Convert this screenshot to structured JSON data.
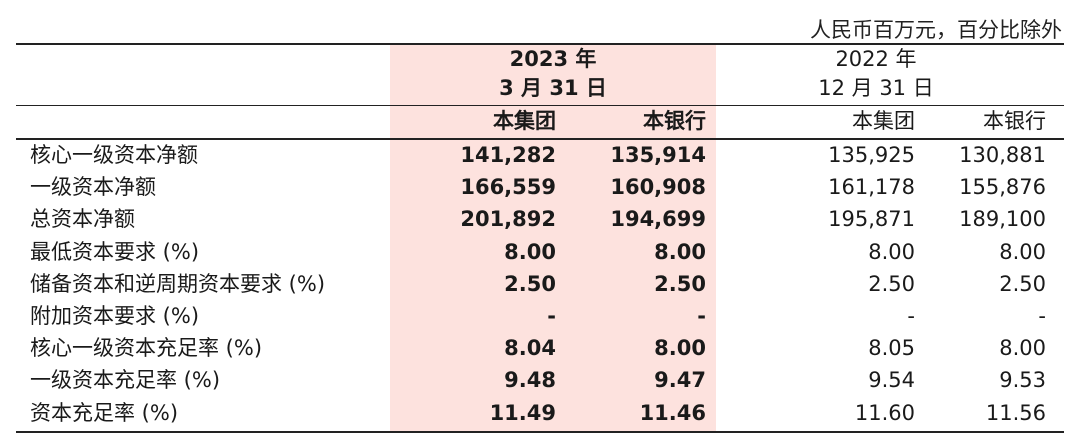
{
  "unit_note": "人民币百万元，百分比除外",
  "header": {
    "period_2023_line1": "2023 年",
    "period_2023_line2": "3 月 31 日",
    "period_2022_line1": "2022 年",
    "period_2022_line2": "12 月 31 日",
    "col_group": "本集团",
    "col_bank": "本银行",
    "col_group_2022": "本集团",
    "col_bank_2022": "本银行"
  },
  "rows": [
    {
      "label": "核心一级资本净额",
      "v1": "141,282",
      "v2": "135,914",
      "v3": "135,925",
      "v4": "130,881"
    },
    {
      "label": "一级资本净额",
      "v1": "166,559",
      "v2": "160,908",
      "v3": "161,178",
      "v4": "155,876"
    },
    {
      "label": "总资本净额",
      "v1": "201,892",
      "v2": "194,699",
      "v3": "195,871",
      "v4": "189,100"
    },
    {
      "label": "最低资本要求 (%)",
      "v1": "8.00",
      "v2": "8.00",
      "v3": "8.00",
      "v4": "8.00"
    },
    {
      "label": "储备资本和逆周期资本要求 (%)",
      "v1": "2.50",
      "v2": "2.50",
      "v3": "2.50",
      "v4": "2.50"
    },
    {
      "label": "附加资本要求 (%)",
      "v1": "-",
      "v2": "-",
      "v3": "-",
      "v4": "-"
    },
    {
      "label": "核心一级资本充足率 (%)",
      "v1": "8.04",
      "v2": "8.00",
      "v3": "8.05",
      "v4": "8.00"
    },
    {
      "label": "一级资本充足率 (%)",
      "v1": "9.48",
      "v2": "9.47",
      "v3": "9.54",
      "v4": "9.53"
    },
    {
      "label": "资本充足率 (%)",
      "v1": "11.49",
      "v2": "11.46",
      "v3": "11.60",
      "v4": "11.56"
    }
  ]
}
